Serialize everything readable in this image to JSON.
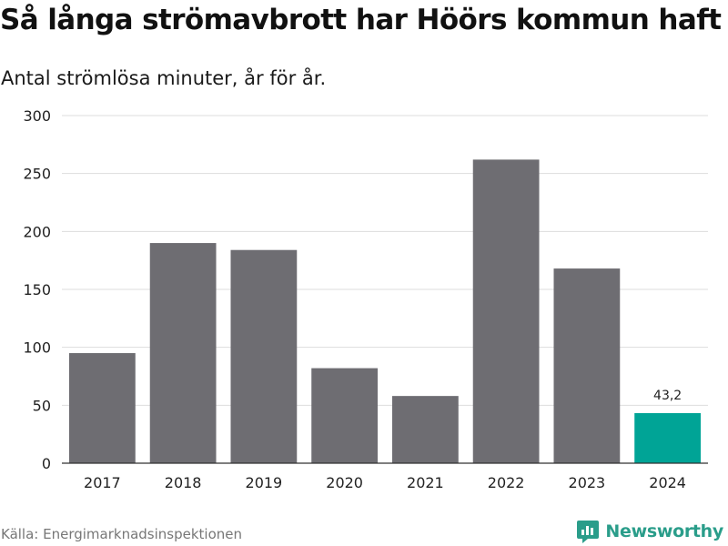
{
  "header": {
    "title": "Så långa strömavbrott har Höörs kommun haft",
    "subtitle": "Antal strömlösa minuter, år för år."
  },
  "footer": {
    "source": "Källa: Energimarknadsinspektionen",
    "brand": "Newsworthy",
    "brand_icon": "newsworthy-logo-icon"
  },
  "colors": {
    "bar": "#6e6d72",
    "highlight": "#00a496",
    "grid": "#dddddd",
    "brand": "#2a9d8a"
  },
  "chart_data": {
    "type": "bar",
    "title": "Så långa strömavbrott har Höörs kommun haft",
    "subtitle": "Antal strömlösa minuter, år för år.",
    "xlabel": "",
    "ylabel": "",
    "categories": [
      "2017",
      "2018",
      "2019",
      "2020",
      "2021",
      "2022",
      "2023",
      "2024"
    ],
    "values": [
      95,
      190,
      184,
      82,
      58,
      262,
      168,
      43.2
    ],
    "highlight_index": 7,
    "data_labels": [
      {
        "index": 7,
        "text": "43,2"
      }
    ],
    "ylim": [
      0,
      300
    ],
    "yticks": [
      0,
      50,
      100,
      150,
      200,
      250,
      300
    ],
    "grid": true,
    "legend": "none"
  }
}
